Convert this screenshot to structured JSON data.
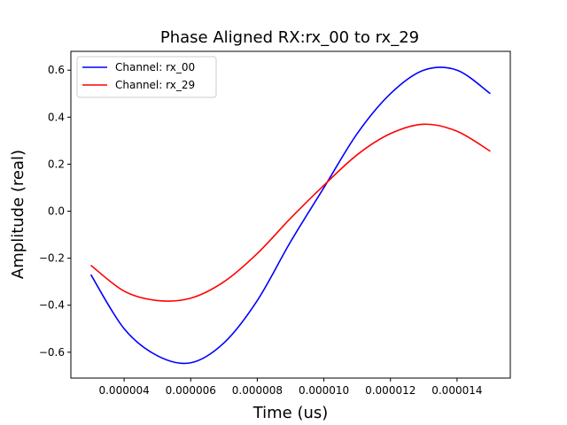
{
  "chart_data": {
    "type": "line",
    "title": "Phase Aligned RX:rx_00 to rx_29",
    "xlabel": "Time (us)",
    "ylabel": "Amplitude (real)",
    "xlim": [
      2.4e-06,
      1.56e-05
    ],
    "ylim": [
      -0.71,
      0.68
    ],
    "legend": "top-left",
    "grid": false,
    "x_ticks": [
      4e-06,
      6e-06,
      8e-06,
      1e-05,
      1.2e-05,
      1.4e-05
    ],
    "x_tick_labels": [
      "0.000004",
      "0.000006",
      "0.000008",
      "0.000010",
      "0.000012",
      "0.000014"
    ],
    "y_ticks": [
      -0.6,
      -0.4,
      -0.2,
      0.0,
      0.2,
      0.4,
      0.6
    ],
    "y_tick_labels": [
      "−0.6",
      "−0.4",
      "−0.2",
      "0.0",
      "0.2",
      "0.4",
      "0.6"
    ],
    "series": [
      {
        "name": "Channel: rx_00",
        "color": "#0000ff",
        "x": [
          3e-06,
          4e-06,
          5e-06,
          6e-06,
          7e-06,
          8e-06,
          9e-06,
          1e-05,
          1.1e-05,
          1.2e-05,
          1.3e-05,
          1.4e-05,
          1.5e-05
        ],
        "y": [
          -0.27,
          -0.5,
          -0.615,
          -0.645,
          -0.56,
          -0.38,
          -0.13,
          0.1,
          0.33,
          0.5,
          0.6,
          0.6,
          0.5
        ]
      },
      {
        "name": "Channel: rx_29",
        "color": "#ff0000",
        "x": [
          3e-06,
          4e-06,
          5e-06,
          6e-06,
          7e-06,
          8e-06,
          9e-06,
          1e-05,
          1.1e-05,
          1.2e-05,
          1.3e-05,
          1.4e-05,
          1.5e-05
        ],
        "y": [
          -0.23,
          -0.34,
          -0.38,
          -0.37,
          -0.3,
          -0.18,
          -0.03,
          0.11,
          0.24,
          0.33,
          0.37,
          0.34,
          0.255
        ]
      }
    ]
  }
}
